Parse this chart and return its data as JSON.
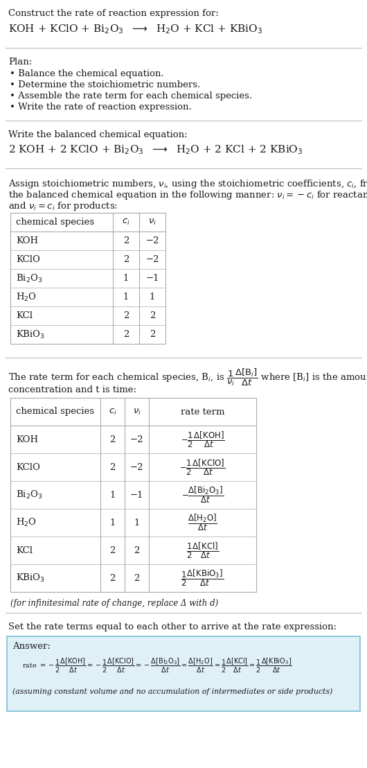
{
  "bg_color": "#ffffff",
  "title_line1": "Construct the rate of reaction expression for:",
  "plan_header": "Plan:",
  "plan_items": [
    "• Balance the chemical equation.",
    "• Determine the stoichiometric numbers.",
    "• Assemble the rate term for each chemical species.",
    "• Write the rate of reaction expression."
  ],
  "balanced_header": "Write the balanced chemical equation:",
  "stoich_header_line1": "Assign stoichiometric numbers, ν_i, using the stoichiometric coefficients, c_i, from",
  "stoich_header_line2": "the balanced chemical equation in the following manner: ν_i = −c_i for reactants",
  "stoich_header_line3": "and ν_i = c_i for products:",
  "table1_data": [
    [
      "KOH",
      "2",
      "−2"
    ],
    [
      "KClO",
      "2",
      "−2"
    ],
    [
      "Bi₂O₃",
      "1",
      "−1"
    ],
    [
      "H₂O",
      "1",
      "1"
    ],
    [
      "KCl",
      "2",
      "2"
    ],
    [
      "KBiO₃",
      "2",
      "2"
    ]
  ],
  "rate_header_line2": "concentration and t is time:",
  "table2_data": [
    [
      "KOH",
      "2",
      "−2"
    ],
    [
      "KClO",
      "2",
      "−2"
    ],
    [
      "Bi₂O₃",
      "1",
      "−1"
    ],
    [
      "H₂O",
      "1",
      "1"
    ],
    [
      "KCl",
      "2",
      "2"
    ],
    [
      "KBiO₃",
      "2",
      "2"
    ]
  ],
  "infinitesimal_note": "(for infinitesimal rate of change, replace Δ with d)",
  "answer_header": "Set the rate terms equal to each other to arrive at the rate expression:",
  "answer_label": "Answer:",
  "answer_box_color": "#dff0f7",
  "answer_box_border": "#7bbdd4",
  "answer_note": "(assuming constant volume and no accumulation of intermediates or side products)"
}
